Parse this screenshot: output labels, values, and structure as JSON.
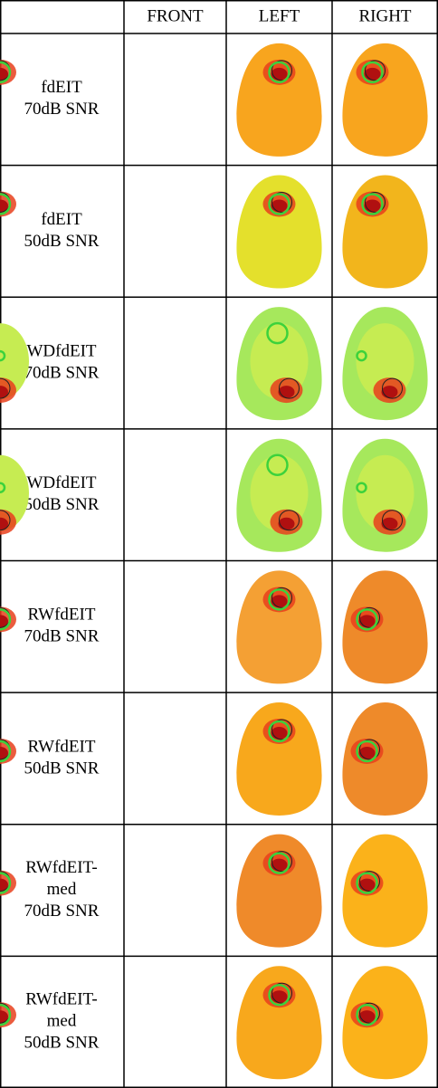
{
  "table": {
    "header": [
      "FRONT",
      "LEFT",
      "RIGHT"
    ],
    "rows": [
      {
        "label": [
          "fdEIT",
          "70dB SNR"
        ]
      },
      {
        "label": [
          "fdEIT",
          "50dB SNR"
        ]
      },
      {
        "label": [
          "WDfdEIT",
          "70dB SNR"
        ]
      },
      {
        "label": [
          "WDfdEIT",
          "50dB SNR"
        ]
      },
      {
        "label": [
          "RWfdEIT",
          "70dB SNR"
        ]
      },
      {
        "label": [
          "RWfdEIT",
          "50dB SNR"
        ]
      },
      {
        "label": [
          "RWfdEIT-",
          "med",
          "70dB SNR"
        ]
      },
      {
        "label": [
          "RWfdEIT-",
          "med",
          "50dB SNR"
        ]
      }
    ]
  }
}
